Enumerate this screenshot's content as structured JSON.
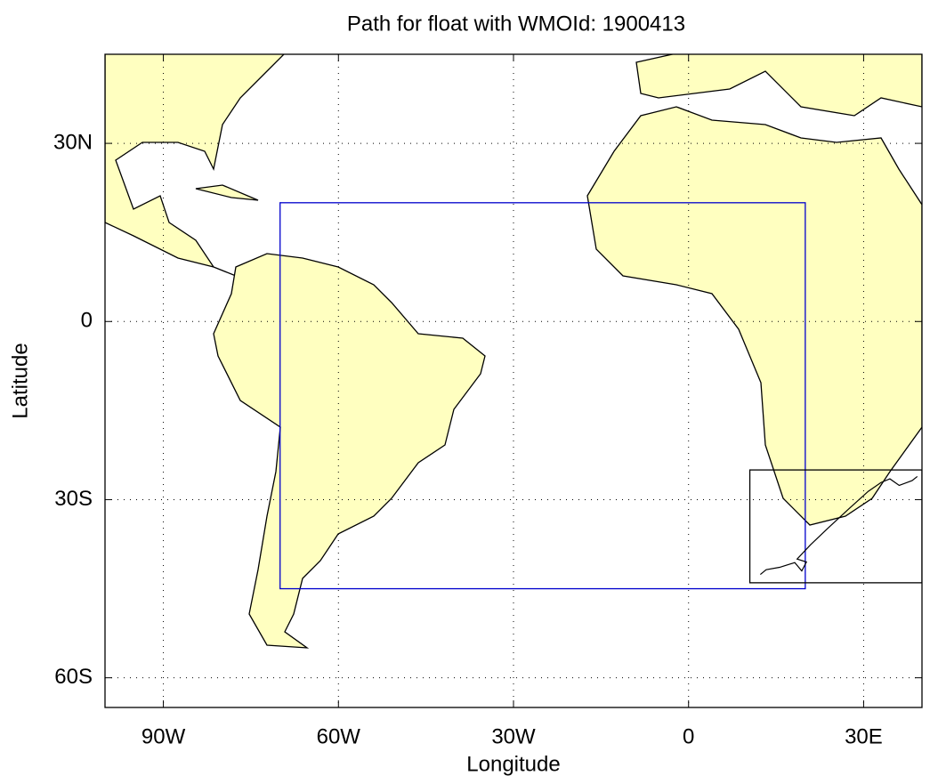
{
  "map": {
    "title": "Path for float with WMOId: 1900413",
    "xlabel": "Longitude",
    "ylabel": "Latitude",
    "xlim": [
      -100,
      40
    ],
    "ylim": [
      -65,
      45
    ],
    "xticks": [
      {
        "value": -90,
        "label": "90W"
      },
      {
        "value": -60,
        "label": "60W"
      },
      {
        "value": -30,
        "label": "30W"
      },
      0,
      {
        "value": 30,
        "label": "30E"
      }
    ],
    "yticks": [
      {
        "value": 30,
        "label": "30N"
      },
      0,
      {
        "value": -30,
        "label": "30S"
      },
      {
        "value": -60,
        "label": "60S"
      }
    ],
    "grid": true,
    "boxes": [
      {
        "lon": [
          -70,
          20
        ],
        "lat": [
          -45,
          20
        ],
        "color": "#0000cc"
      },
      {
        "lon": [
          10.5,
          40
        ],
        "lat": [
          -44,
          -25
        ],
        "color": "#000000"
      }
    ],
    "path": {
      "color": "#000000",
      "lon": [
        12.3,
        13.3,
        15.6,
        18.2,
        19.4,
        20.2,
        18.6,
        20.9,
        23.9,
        27.4,
        30.8,
        33.0,
        34.5,
        36.1,
        38.3,
        39.2
      ],
      "lat": [
        -42.6,
        -41.8,
        -41.4,
        -40.6,
        -42.0,
        -40.5,
        -40.0,
        -37.6,
        -34.8,
        -31.6,
        -28.6,
        -27.1,
        -26.5,
        -27.6,
        -26.8,
        -26.1
      ]
    }
  }
}
